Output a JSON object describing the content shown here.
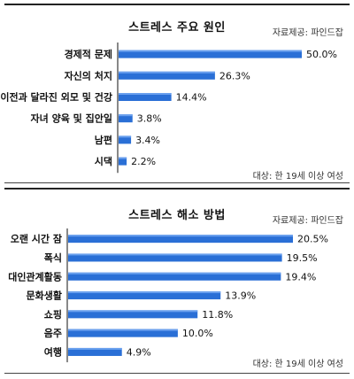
{
  "chart_data": [
    {
      "type": "bar",
      "orientation": "horizontal",
      "title": "스트레스 주요 원인",
      "source": "자료제공: 파인드잡",
      "note": "대상: 한 19세 이상 여성",
      "categories": [
        "경제적 문제",
        "자신의 처지",
        "이전과 달라진 외모 및 건강",
        "자녀 양육 및 집안일",
        "남편",
        "시댁"
      ],
      "values": [
        50.0,
        26.3,
        14.4,
        3.8,
        3.4,
        2.2
      ],
      "value_labels": [
        "50.0%",
        "26.3%",
        "14.4%",
        "3.8%",
        "3.4%",
        "2.2%"
      ],
      "xlim": [
        0,
        50
      ],
      "legend": "none",
      "grid": false
    },
    {
      "type": "bar",
      "orientation": "horizontal",
      "title": "스트레스 해소 방법",
      "source": "자료제공: 파인드잡",
      "note": "대상: 한 19세 이상 여성",
      "categories": [
        "오랜 시간 잠",
        "폭식",
        "대인관계활동",
        "문화생활",
        "쇼핑",
        "음주",
        "여행"
      ],
      "values": [
        20.5,
        19.5,
        19.4,
        13.9,
        11.8,
        10.0,
        4.9
      ],
      "value_labels": [
        "20.5%",
        "19.5%",
        "19.4%",
        "13.9%",
        "11.8%",
        "10.0%",
        "4.9%"
      ],
      "xlim": [
        0,
        20.5
      ],
      "legend": "none",
      "grid": false
    }
  ],
  "colors": {
    "bar": "#2a6fd6",
    "text": "#111111",
    "rule": "#222222"
  }
}
